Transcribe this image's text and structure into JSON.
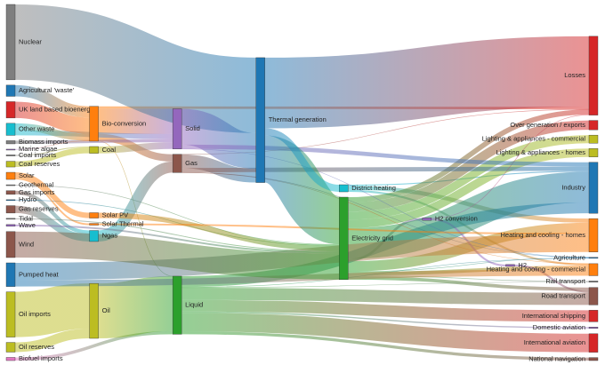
{
  "chart_data": {
    "type": "sankey",
    "nodes": [
      {
        "name": "Nuclear",
        "color": "#7f7f7f"
      },
      {
        "name": "Agricultural 'waste'",
        "color": "#1f77b4"
      },
      {
        "name": "UK land based bioenergy",
        "color": "#d62728"
      },
      {
        "name": "Other waste",
        "color": "#17becf"
      },
      {
        "name": "Biomass imports",
        "color": "#7f7f7f"
      },
      {
        "name": "Marine algae",
        "color": "#9467bd"
      },
      {
        "name": "Coal imports",
        "color": "#7f7f7f"
      },
      {
        "name": "Coal reserves",
        "color": "#bcbd22"
      },
      {
        "name": "Solar",
        "color": "#ff7f0e"
      },
      {
        "name": "Geothermal",
        "color": "#7f7f7f"
      },
      {
        "name": "Gas imports",
        "color": "#8c564b"
      },
      {
        "name": "Hydro",
        "color": "#1f77b4"
      },
      {
        "name": "Gas reserves",
        "color": "#8c564b"
      },
      {
        "name": "Tidal",
        "color": "#7f7f7f"
      },
      {
        "name": "Wave",
        "color": "#9467bd"
      },
      {
        "name": "Wind",
        "color": "#8c564b"
      },
      {
        "name": "Pumped heat",
        "color": "#1f77b4"
      },
      {
        "name": "Oil imports",
        "color": "#bcbd22"
      },
      {
        "name": "Oil reserves",
        "color": "#bcbd22"
      },
      {
        "name": "Biofuel imports",
        "color": "#e377c2"
      },
      {
        "name": "Bio-conversion",
        "color": "#ff7f0e"
      },
      {
        "name": "Coal",
        "color": "#bcbd22"
      },
      {
        "name": "Solar PV",
        "color": "#ff7f0e"
      },
      {
        "name": "Solar Thermal",
        "color": "#ff7f0e"
      },
      {
        "name": "Ngas",
        "color": "#17becf"
      },
      {
        "name": "Oil",
        "color": "#bcbd22"
      },
      {
        "name": "Solid",
        "color": "#9467bd"
      },
      {
        "name": "Gas",
        "color": "#8c564b"
      },
      {
        "name": "Liquid",
        "color": "#2ca02c"
      },
      {
        "name": "Thermal generation",
        "color": "#1f77b4"
      },
      {
        "name": "District heating",
        "color": "#17becf"
      },
      {
        "name": "Electricity grid",
        "color": "#2ca02c"
      },
      {
        "name": "H2 conversion",
        "color": "#9467bd"
      },
      {
        "name": "H2",
        "color": "#9467bd"
      },
      {
        "name": "Losses",
        "color": "#d62728"
      },
      {
        "name": "Over generation / exports",
        "color": "#d62728"
      },
      {
        "name": "Lighting & appliances - commercial",
        "color": "#bcbd22"
      },
      {
        "name": "Lighting & appliances - homes",
        "color": "#bcbd22"
      },
      {
        "name": "Industry",
        "color": "#1f77b4"
      },
      {
        "name": "Heating and cooling - homes",
        "color": "#ff7f0e"
      },
      {
        "name": "Agriculture",
        "color": "#1f77b4"
      },
      {
        "name": "Heating and cooling - commercial",
        "color": "#ff7f0e"
      },
      {
        "name": "Rail transport",
        "color": "#7f7f7f"
      },
      {
        "name": "Road transport",
        "color": "#8c564b"
      },
      {
        "name": "International shipping",
        "color": "#d62728"
      },
      {
        "name": "Domestic aviation",
        "color": "#9467bd"
      },
      {
        "name": "International aviation",
        "color": "#d62728"
      },
      {
        "name": "National navigation",
        "color": "#8c564b"
      }
    ],
    "links": [
      {
        "source": 1,
        "target": 20,
        "value": 124.729
      },
      {
        "source": 20,
        "target": 28,
        "value": 0.597
      },
      {
        "source": 20,
        "target": 34,
        "value": 26.862
      },
      {
        "source": 20,
        "target": 26,
        "value": 280.322
      },
      {
        "source": 20,
        "target": 27,
        "value": 81.144
      },
      {
        "source": 19,
        "target": 28,
        "value": 35
      },
      {
        "source": 4,
        "target": 26,
        "value": 35
      },
      {
        "source": 6,
        "target": 21,
        "value": 11.606
      },
      {
        "source": 7,
        "target": 21,
        "value": 63.965
      },
      {
        "source": 21,
        "target": 26,
        "value": 75.571
      },
      {
        "source": 30,
        "target": 38,
        "value": 10.639
      },
      {
        "source": 30,
        "target": 41,
        "value": 22.505
      },
      {
        "source": 30,
        "target": 39,
        "value": 46.184
      },
      {
        "source": 31,
        "target": 35,
        "value": 104.453
      },
      {
        "source": 31,
        "target": 39,
        "value": 113.726
      },
      {
        "source": 31,
        "target": 32,
        "value": 27.14
      },
      {
        "source": 31,
        "target": 38,
        "value": 342.165
      },
      {
        "source": 31,
        "target": 43,
        "value": 37.797
      },
      {
        "source": 31,
        "target": 40,
        "value": 4.412
      },
      {
        "source": 31,
        "target": 41,
        "value": 40.858
      },
      {
        "source": 31,
        "target": 34,
        "value": 56.691
      },
      {
        "source": 31,
        "target": 42,
        "value": 7.863
      },
      {
        "source": 31,
        "target": 36,
        "value": 90.008
      },
      {
        "source": 31,
        "target": 37,
        "value": 93.494
      },
      {
        "source": 10,
        "target": 24,
        "value": 40.719
      },
      {
        "source": 12,
        "target": 24,
        "value": 82.233
      },
      {
        "source": 27,
        "target": 41,
        "value": 0.129
      },
      {
        "source": 27,
        "target": 34,
        "value": 1.401
      },
      {
        "source": 27,
        "target": 29,
        "value": 151.891
      },
      {
        "source": 27,
        "target": 40,
        "value": 2.096
      },
      {
        "source": 27,
        "target": 38,
        "value": 48.58
      },
      {
        "source": 9,
        "target": 31,
        "value": 7.013
      },
      {
        "source": 32,
        "target": 33,
        "value": 20.897
      },
      {
        "source": 32,
        "target": 34,
        "value": 6.242
      },
      {
        "source": 33,
        "target": 43,
        "value": 20.897
      },
      {
        "source": 11,
        "target": 31,
        "value": 6.995
      },
      {
        "source": 28,
        "target": 38,
        "value": 121.066
      },
      {
        "source": 28,
        "target": 44,
        "value": 128.69
      },
      {
        "source": 28,
        "target": 43,
        "value": 135.835
      },
      {
        "source": 28,
        "target": 45,
        "value": 14.458
      },
      {
        "source": 28,
        "target": 46,
        "value": 206.267
      },
      {
        "source": 28,
        "target": 40,
        "value": 3.64
      },
      {
        "source": 28,
        "target": 47,
        "value": 33.218
      },
      {
        "source": 28,
        "target": 42,
        "value": 4.413
      },
      {
        "source": 5,
        "target": 20,
        "value": 4.375
      },
      {
        "source": 24,
        "target": 27,
        "value": 122.952
      },
      {
        "source": 0,
        "target": 29,
        "value": 839.978
      },
      {
        "source": 17,
        "target": 25,
        "value": 504.287
      },
      {
        "source": 18,
        "target": 25,
        "value": 107.703
      },
      {
        "source": 25,
        "target": 28,
        "value": 611.99
      },
      {
        "source": 3,
        "target": 26,
        "value": 56.587
      },
      {
        "source": 3,
        "target": 20,
        "value": 77.81
      },
      {
        "source": 16,
        "target": 39,
        "value": 193.026
      },
      {
        "source": 16,
        "target": 41,
        "value": 70.672
      },
      {
        "source": 22,
        "target": 31,
        "value": 59.901
      },
      {
        "source": 23,
        "target": 39,
        "value": 19.263
      },
      {
        "source": 8,
        "target": 23,
        "value": 19.263
      },
      {
        "source": 8,
        "target": 22,
        "value": 59.901
      },
      {
        "source": 26,
        "target": 40,
        "value": 0.882
      },
      {
        "source": 26,
        "target": 29,
        "value": 400.12
      },
      {
        "source": 26,
        "target": 38,
        "value": 46.477
      },
      {
        "source": 29,
        "target": 31,
        "value": 525.531
      },
      {
        "source": 29,
        "target": 34,
        "value": 787.129
      },
      {
        "source": 29,
        "target": 30,
        "value": 79.329
      },
      {
        "source": 13,
        "target": 31,
        "value": 9.452
      },
      {
        "source": 2,
        "target": 20,
        "value": 182.01
      },
      {
        "source": 14,
        "target": 31,
        "value": 19.013
      },
      {
        "source": 15,
        "target": 31,
        "value": 289.366
      }
    ]
  }
}
